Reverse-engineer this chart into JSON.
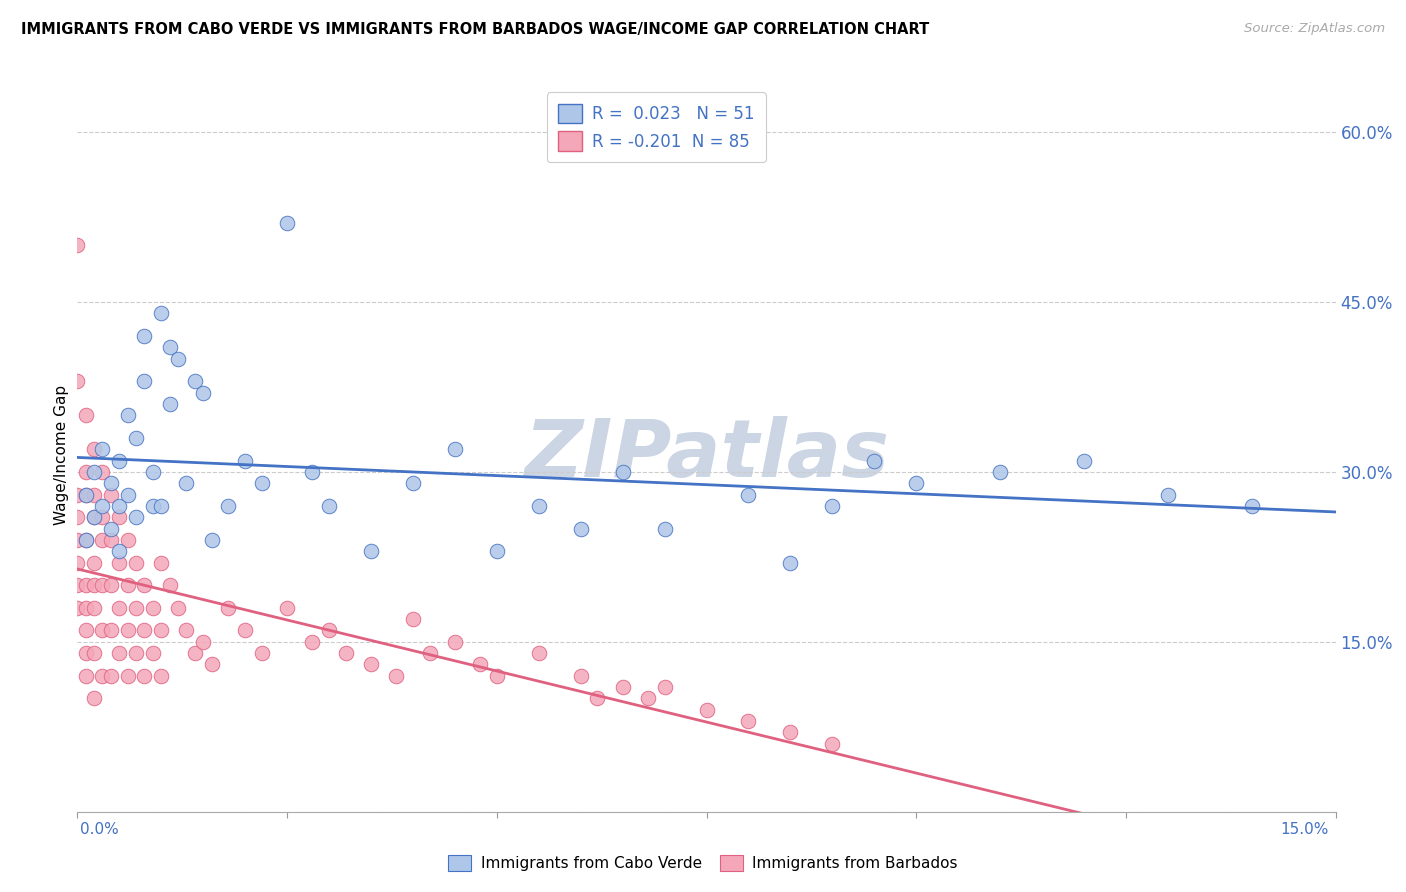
{
  "title": "IMMIGRANTS FROM CABO VERDE VS IMMIGRANTS FROM BARBADOS WAGE/INCOME GAP CORRELATION CHART",
  "source": "Source: ZipAtlas.com",
  "ylabel": "Wage/Income Gap",
  "x_min": 0.0,
  "x_max": 0.15,
  "y_min": 0.0,
  "y_max": 0.63,
  "cabo_verde_R": 0.023,
  "cabo_verde_N": 51,
  "barbados_R": -0.201,
  "barbados_N": 85,
  "cabo_verde_color": "#aec6e8",
  "barbados_color": "#f4a7b9",
  "cabo_verde_line_color": "#4472c4",
  "barbados_line_color": "#e06080",
  "watermark": "ZIPatlas",
  "watermark_color": "#ccd5e4",
  "legend_text_color": "#4472c4",
  "cabo_verde_points_x": [
    0.001,
    0.001,
    0.002,
    0.002,
    0.003,
    0.003,
    0.004,
    0.004,
    0.005,
    0.005,
    0.005,
    0.006,
    0.006,
    0.007,
    0.007,
    0.008,
    0.008,
    0.009,
    0.009,
    0.01,
    0.01,
    0.011,
    0.011,
    0.012,
    0.013,
    0.014,
    0.015,
    0.016,
    0.018,
    0.02,
    0.022,
    0.025,
    0.028,
    0.03,
    0.035,
    0.04,
    0.045,
    0.05,
    0.055,
    0.06,
    0.065,
    0.07,
    0.08,
    0.085,
    0.09,
    0.095,
    0.1,
    0.11,
    0.12,
    0.13,
    0.14
  ],
  "cabo_verde_points_y": [
    0.28,
    0.24,
    0.3,
    0.26,
    0.32,
    0.27,
    0.29,
    0.25,
    0.27,
    0.23,
    0.31,
    0.28,
    0.35,
    0.33,
    0.26,
    0.38,
    0.42,
    0.3,
    0.27,
    0.44,
    0.27,
    0.41,
    0.36,
    0.4,
    0.29,
    0.38,
    0.37,
    0.24,
    0.27,
    0.31,
    0.29,
    0.52,
    0.3,
    0.27,
    0.23,
    0.29,
    0.32,
    0.23,
    0.27,
    0.25,
    0.3,
    0.25,
    0.28,
    0.22,
    0.27,
    0.31,
    0.29,
    0.3,
    0.31,
    0.28,
    0.27
  ],
  "barbados_points_x": [
    0.0,
    0.0,
    0.0,
    0.0,
    0.0,
    0.0,
    0.0,
    0.0,
    0.001,
    0.001,
    0.001,
    0.001,
    0.001,
    0.001,
    0.001,
    0.001,
    0.001,
    0.002,
    0.002,
    0.002,
    0.002,
    0.002,
    0.002,
    0.002,
    0.002,
    0.003,
    0.003,
    0.003,
    0.003,
    0.003,
    0.003,
    0.004,
    0.004,
    0.004,
    0.004,
    0.004,
    0.005,
    0.005,
    0.005,
    0.005,
    0.006,
    0.006,
    0.006,
    0.006,
    0.007,
    0.007,
    0.007,
    0.008,
    0.008,
    0.008,
    0.009,
    0.009,
    0.01,
    0.01,
    0.01,
    0.011,
    0.012,
    0.013,
    0.014,
    0.015,
    0.016,
    0.018,
    0.02,
    0.022,
    0.025,
    0.028,
    0.03,
    0.032,
    0.035,
    0.038,
    0.04,
    0.042,
    0.045,
    0.048,
    0.05,
    0.055,
    0.06,
    0.062,
    0.065,
    0.068,
    0.07,
    0.075,
    0.08,
    0.085,
    0.09
  ],
  "barbados_points_y": [
    0.5,
    0.38,
    0.28,
    0.26,
    0.24,
    0.22,
    0.2,
    0.18,
    0.35,
    0.3,
    0.28,
    0.24,
    0.2,
    0.18,
    0.16,
    0.14,
    0.12,
    0.32,
    0.28,
    0.26,
    0.22,
    0.2,
    0.18,
    0.14,
    0.1,
    0.3,
    0.26,
    0.24,
    0.2,
    0.16,
    0.12,
    0.28,
    0.24,
    0.2,
    0.16,
    0.12,
    0.26,
    0.22,
    0.18,
    0.14,
    0.24,
    0.2,
    0.16,
    0.12,
    0.22,
    0.18,
    0.14,
    0.2,
    0.16,
    0.12,
    0.18,
    0.14,
    0.22,
    0.16,
    0.12,
    0.2,
    0.18,
    0.16,
    0.14,
    0.15,
    0.13,
    0.18,
    0.16,
    0.14,
    0.18,
    0.15,
    0.16,
    0.14,
    0.13,
    0.12,
    0.17,
    0.14,
    0.15,
    0.13,
    0.12,
    0.14,
    0.12,
    0.1,
    0.11,
    0.1,
    0.11,
    0.09,
    0.08,
    0.07,
    0.06
  ]
}
